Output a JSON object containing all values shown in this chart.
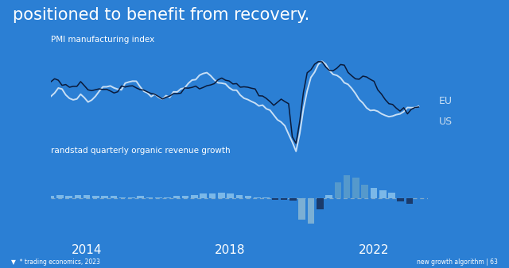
{
  "bg_color": "#2B7FD4",
  "title": "positioned to benefit from recovery.",
  "title_color": "#FFFFFF",
  "title_fontsize": 15,
  "pmi_label": "PMI manufacturing index",
  "bar_label": "randstad quarterly organic revenue growth",
  "eu_label": "EU",
  "us_label": "US",
  "eu_color": "#C8DFF5",
  "us_color": "#0A1A3A",
  "footer_left": "* trading economics, 2023",
  "footer_right": "new growth algorithm | 63",
  "footer_color": "#FFFFFF",
  "x_ticks": [
    2014,
    2018,
    2022
  ],
  "pmi_eu": [
    51.0,
    53.0,
    54.5,
    54.0,
    52.5,
    51.0,
    50.5,
    51.5,
    52.0,
    51.0,
    50.0,
    50.5,
    51.5,
    53.5,
    55.0,
    55.5,
    55.0,
    54.5,
    54.0,
    54.5,
    55.5,
    56.5,
    57.0,
    56.0,
    55.0,
    54.0,
    53.0,
    52.5,
    52.0,
    51.5,
    51.0,
    51.5,
    52.0,
    53.0,
    54.0,
    54.5,
    55.0,
    55.5,
    56.5,
    57.5,
    58.5,
    59.5,
    59.5,
    59.0,
    58.0,
    57.0,
    56.0,
    55.0,
    54.5,
    54.0,
    53.0,
    52.0,
    51.0,
    50.5,
    50.0,
    49.5,
    49.0,
    48.5,
    47.5,
    46.5,
    45.5,
    44.5,
    43.0,
    41.0,
    39.0,
    36.5,
    33.5,
    39.5,
    47.5,
    54.0,
    57.5,
    60.0,
    62.5,
    63.0,
    62.0,
    60.5,
    59.0,
    58.5,
    58.0,
    57.0,
    55.5,
    54.0,
    52.5,
    51.0,
    49.5,
    48.0,
    47.0,
    46.5,
    46.0,
    45.5,
    45.0,
    44.5,
    45.0,
    45.5,
    46.0,
    46.5,
    47.0,
    47.5,
    48.0,
    48.5
  ],
  "pmi_us": [
    57.0,
    57.5,
    57.0,
    56.0,
    55.5,
    55.0,
    54.5,
    55.0,
    56.0,
    55.5,
    54.0,
    53.5,
    53.5,
    54.0,
    54.5,
    54.0,
    53.5,
    53.0,
    53.5,
    54.5,
    55.0,
    55.5,
    55.0,
    54.5,
    54.0,
    53.5,
    53.0,
    52.5,
    52.0,
    51.5,
    51.0,
    51.5,
    52.0,
    52.5,
    53.0,
    53.5,
    54.5,
    55.0,
    55.5,
    55.0,
    54.5,
    54.5,
    55.5,
    56.0,
    56.5,
    57.5,
    58.0,
    57.5,
    57.0,
    56.5,
    56.0,
    55.5,
    55.0,
    54.5,
    54.0,
    53.5,
    52.5,
    51.5,
    50.5,
    49.5,
    49.0,
    49.5,
    50.0,
    50.5,
    49.0,
    37.5,
    36.0,
    43.0,
    53.5,
    60.0,
    61.0,
    62.5,
    63.5,
    63.0,
    62.0,
    60.5,
    60.0,
    61.0,
    63.0,
    62.0,
    60.0,
    58.5,
    57.5,
    57.0,
    58.5,
    59.0,
    58.0,
    56.5,
    54.0,
    52.0,
    50.5,
    49.5,
    48.5,
    48.0,
    47.5,
    47.0,
    46.5,
    47.0,
    47.5,
    48.0
  ],
  "bar_quarters": [
    2013.0,
    2013.25,
    2013.5,
    2013.75,
    2014.0,
    2014.25,
    2014.5,
    2014.75,
    2015.0,
    2015.25,
    2015.5,
    2015.75,
    2016.0,
    2016.25,
    2016.5,
    2016.75,
    2017.0,
    2017.25,
    2017.5,
    2017.75,
    2018.0,
    2018.25,
    2018.5,
    2018.75,
    2019.0,
    2019.25,
    2019.5,
    2019.75,
    2020.0,
    2020.25,
    2020.5,
    2020.75,
    2021.0,
    2021.25,
    2021.5,
    2021.75,
    2022.0,
    2022.25,
    2022.5,
    2022.75,
    2023.0
  ],
  "bar_values": [
    2,
    3,
    2,
    3,
    3,
    2,
    2,
    2,
    1,
    1,
    2,
    1,
    1,
    1,
    2,
    2,
    3,
    4,
    4,
    5,
    4,
    3,
    2,
    1,
    1,
    -1,
    -1,
    -2,
    -19,
    -22,
    -10,
    3,
    14,
    20,
    18,
    12,
    9,
    7,
    5,
    -3,
    -5
  ],
  "bar_pos_color": "#7BB8E8",
  "bar_neg_color": "#1A3A6B",
  "bar_large_pos_color": "#5599CC",
  "bar_large_neg_color": "#7BAFD4",
  "dashed_line_color": "#80AACC",
  "logo_color": "#FFFFFF"
}
